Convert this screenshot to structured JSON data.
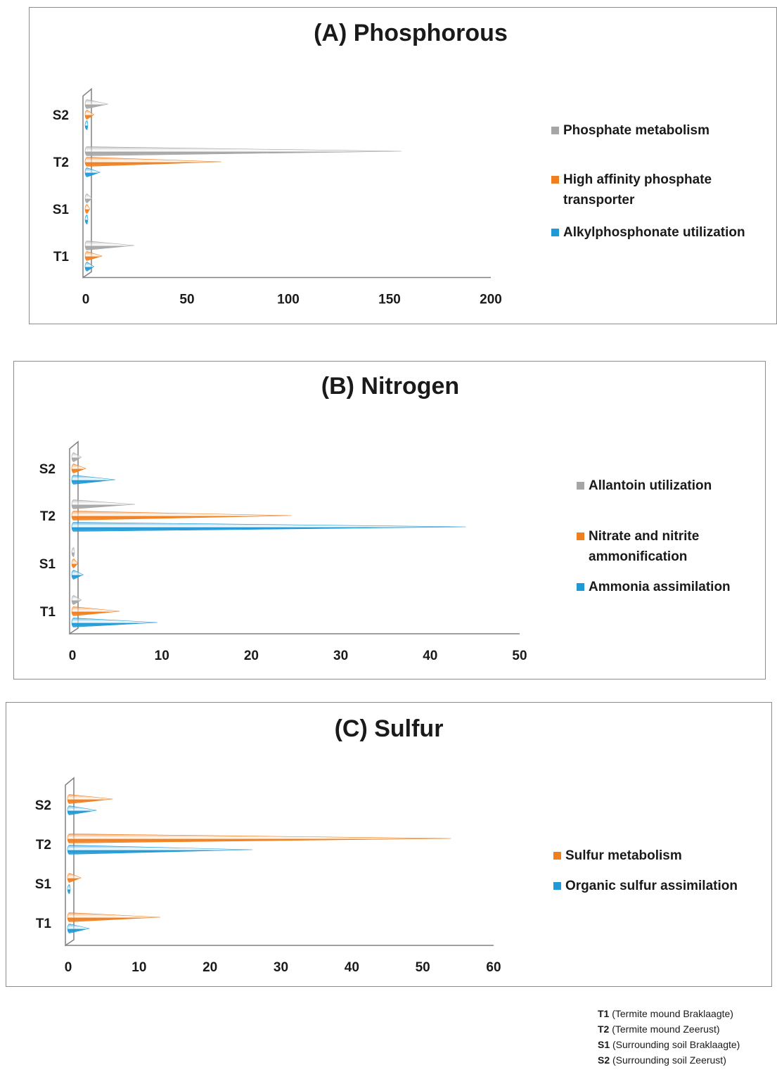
{
  "chart_data": [
    {
      "type": "bar",
      "orientation": "horizontal",
      "title": "(A) Phosphorous",
      "categories": [
        "T1",
        "S1",
        "T2",
        "S2"
      ],
      "xlim": [
        0,
        200
      ],
      "xticks": [
        0,
        50,
        100,
        150,
        200
      ],
      "legend_position": "right",
      "series": [
        {
          "name": "Alkylphosphonate utilization",
          "color": "#1f9ad6",
          "values": [
            4,
            1,
            7,
            1
          ]
        },
        {
          "name": "High affinity phosphate transporter",
          "color": "#f07f1e",
          "values": [
            8,
            2,
            67,
            4
          ]
        },
        {
          "name": "Phosphate metabolism",
          "color": "#a6a6a6",
          "values": [
            24,
            3,
            156,
            11
          ]
        }
      ],
      "legend_order": [
        2,
        1,
        0
      ]
    },
    {
      "type": "bar",
      "orientation": "horizontal",
      "title": "(B) Nitrogen",
      "categories": [
        "T1",
        "S1",
        "T2",
        "S2"
      ],
      "xlim": [
        0,
        50
      ],
      "xticks": [
        0,
        10,
        20,
        30,
        40,
        50
      ],
      "legend_position": "right",
      "series": [
        {
          "name": "Ammonia assimilation",
          "color": "#1f9ad6",
          "values": [
            9.5,
            1.2,
            44,
            4.8
          ]
        },
        {
          "name": "Nitrate and nitrite ammonification",
          "color": "#f07f1e",
          "values": [
            5.3,
            0.6,
            24.5,
            1.5
          ]
        },
        {
          "name": "Allantoin utilization",
          "color": "#a6a6a6",
          "values": [
            1,
            0.2,
            7,
            1
          ]
        }
      ],
      "legend_order": [
        2,
        1,
        0
      ]
    },
    {
      "type": "bar",
      "orientation": "horizontal",
      "title": "(C) Sulfur",
      "categories": [
        "T1",
        "S1",
        "T2",
        "S2"
      ],
      "xlim": [
        0,
        60
      ],
      "xticks": [
        0,
        10,
        20,
        30,
        40,
        50,
        60
      ],
      "legend_position": "right",
      "series": [
        {
          "name": "Organic sulfur assimilation",
          "color": "#1f9ad6",
          "values": [
            3,
            0.3,
            26,
            4
          ]
        },
        {
          "name": "Sulfur metabolism",
          "color": "#f07f1e",
          "values": [
            13,
            1.8,
            54,
            6.3
          ]
        }
      ],
      "legend_order": [
        1,
        0
      ]
    }
  ],
  "footnote": [
    {
      "code": "T1",
      "desc": " (Termite mound Braklaagte)"
    },
    {
      "code": "T2",
      "desc": " (Termite mound Zeerust)"
    },
    {
      "code": "S1",
      "desc": " (Surrounding soil Braklaagte)"
    },
    {
      "code": "S2",
      "desc": " (Surrounding soil Zeerust)"
    }
  ]
}
